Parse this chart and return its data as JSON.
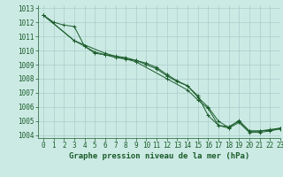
{
  "bg_color": "#cceae4",
  "grid_color": "#aacccc",
  "line_color": "#1a5c2a",
  "xlabel": "Graphe pression niveau de la mer (hPa)",
  "xlabel_fontsize": 6.5,
  "tick_fontsize": 5.5,
  "xlim": [
    -0.5,
    23
  ],
  "ylim": [
    1003.8,
    1013.2
  ],
  "xticks": [
    0,
    1,
    2,
    3,
    4,
    5,
    6,
    7,
    8,
    9,
    10,
    11,
    12,
    13,
    14,
    15,
    16,
    17,
    18,
    19,
    20,
    21,
    22,
    23
  ],
  "yticks": [
    1004,
    1005,
    1006,
    1007,
    1008,
    1009,
    1010,
    1011,
    1012,
    1013
  ],
  "series": [
    {
      "x": [
        0,
        1,
        2,
        3,
        4,
        5,
        6,
        7,
        8,
        9,
        10,
        11,
        12,
        13,
        14,
        15,
        16,
        17,
        18,
        19,
        20,
        21,
        22,
        23
      ],
      "y": [
        1012.5,
        1012.0,
        1011.8,
        1011.7,
        1010.3,
        1009.8,
        1009.7,
        1009.5,
        1009.4,
        1009.3,
        1009.0,
        1008.7,
        1008.2,
        1007.8,
        1007.5,
        1006.8,
        1005.4,
        1004.7,
        1004.6,
        1005.0,
        1004.3,
        1004.3,
        1004.4,
        1004.5
      ]
    },
    {
      "x": [
        0,
        3,
        4,
        5,
        6,
        7,
        8,
        9,
        10,
        11,
        12,
        13,
        14,
        15,
        16,
        17,
        18,
        19,
        20,
        21,
        22,
        23
      ],
      "y": [
        1012.5,
        1010.7,
        1010.3,
        1009.9,
        1009.7,
        1009.6,
        1009.5,
        1009.3,
        1009.1,
        1008.8,
        1008.3,
        1007.85,
        1007.5,
        1006.7,
        1006.0,
        1005.0,
        1004.55,
        1005.05,
        1004.3,
        1004.3,
        1004.35,
        1004.5
      ]
    },
    {
      "x": [
        0,
        3,
        6,
        9,
        12,
        14,
        15,
        16,
        17,
        18,
        19,
        20,
        21,
        22,
        23
      ],
      "y": [
        1012.5,
        1010.7,
        1009.8,
        1009.2,
        1008.0,
        1007.2,
        1006.5,
        1005.9,
        1004.7,
        1004.5,
        1004.9,
        1004.2,
        1004.2,
        1004.3,
        1004.45
      ]
    }
  ]
}
